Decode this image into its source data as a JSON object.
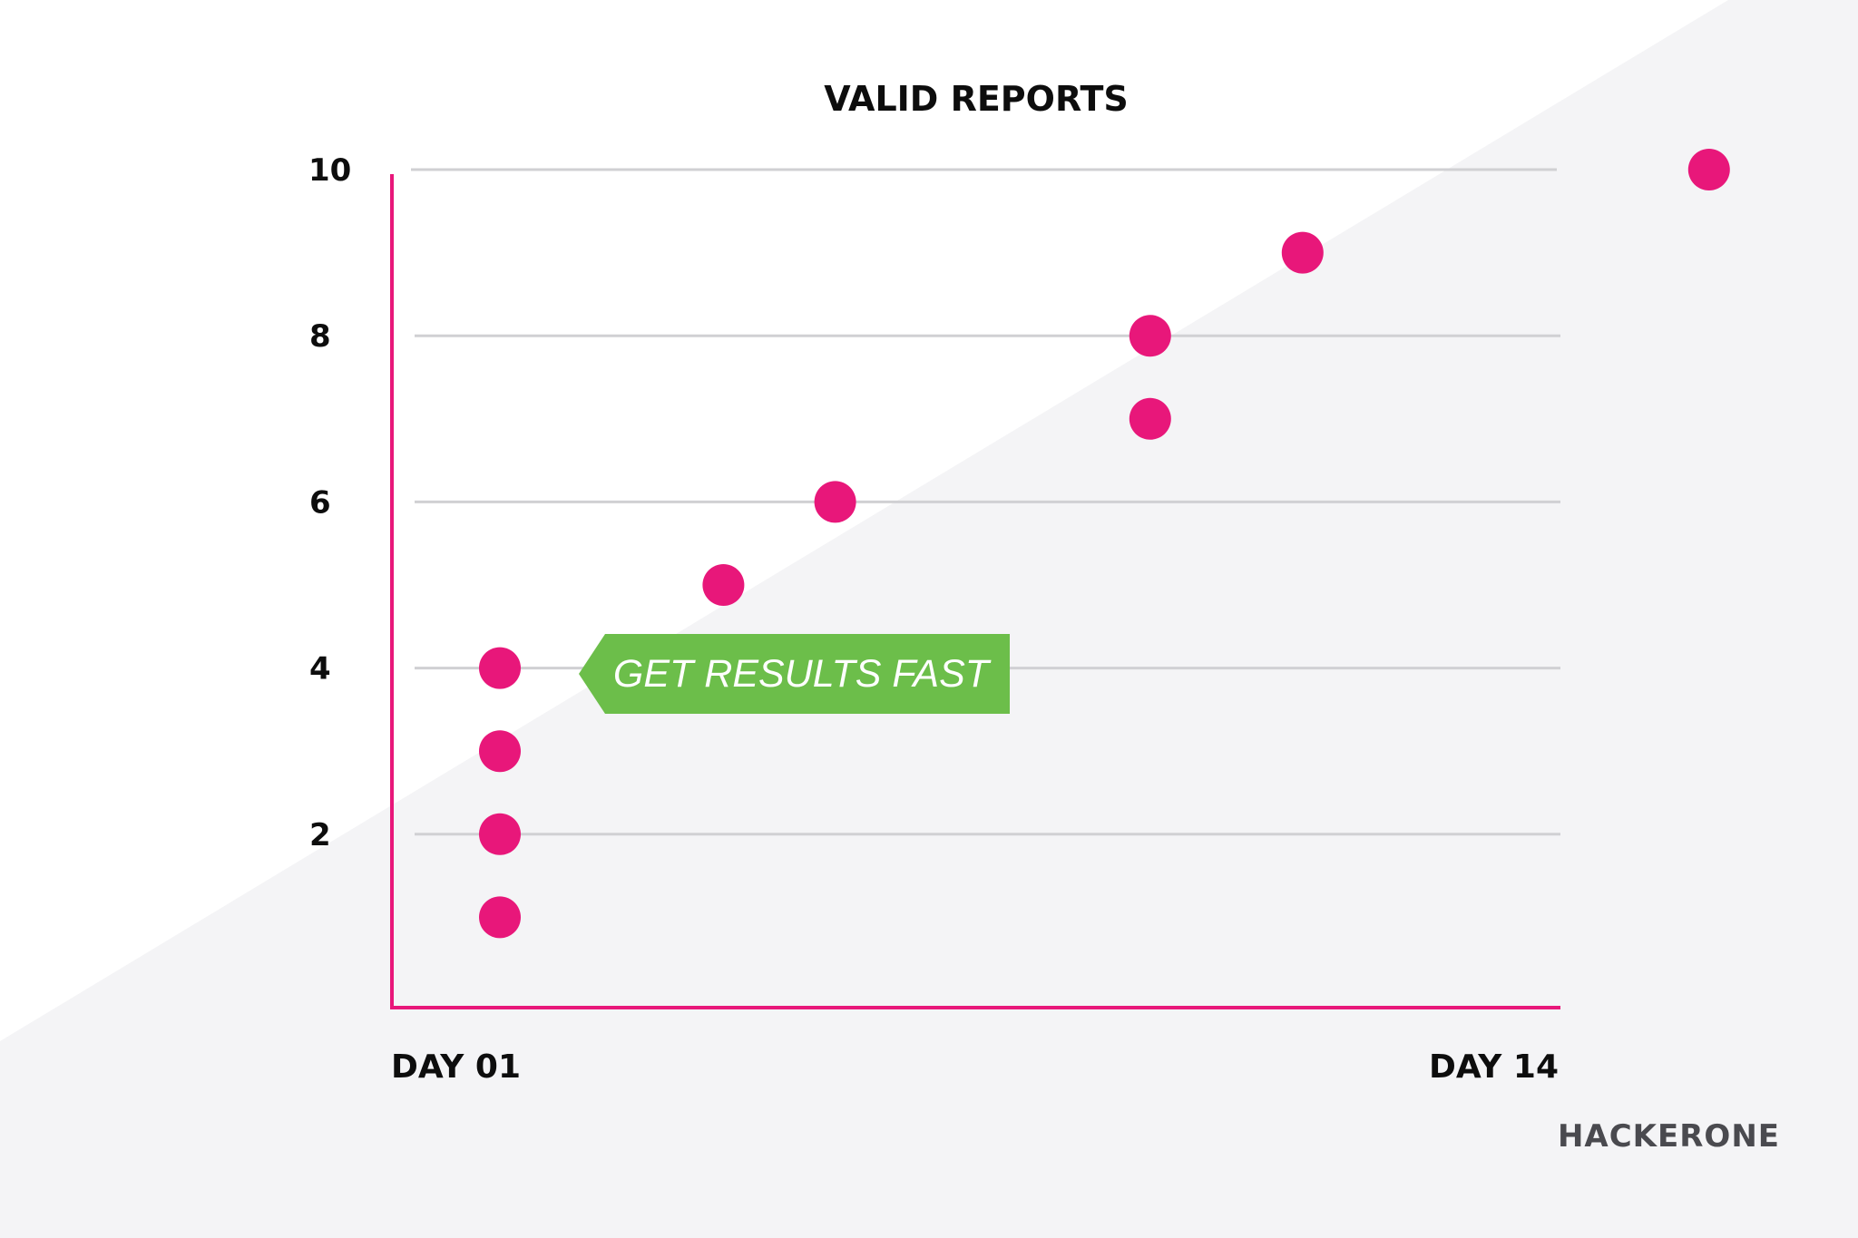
{
  "chart_data": {
    "type": "scatter",
    "title": "VALID REPORTS",
    "ylim": [
      0,
      10
    ],
    "y_ticks": [
      "2",
      "4",
      "6",
      "8",
      "10"
    ],
    "x_ticks": [
      "DAY 01",
      "DAY 14"
    ],
    "grid": true,
    "points": [
      {
        "x": 1,
        "y": 1
      },
      {
        "x": 1,
        "y": 2
      },
      {
        "x": 1,
        "y": 3
      },
      {
        "x": 1,
        "y": 4
      },
      {
        "x": 3.2,
        "y": 5
      },
      {
        "x": 4.3,
        "y": 6
      },
      {
        "x": 7.4,
        "y": 7
      },
      {
        "x": 7.4,
        "y": 8
      },
      {
        "x": 8.9,
        "y": 9
      },
      {
        "x": 12.9,
        "y": 10
      }
    ],
    "annotation": "GET RESULTS FAST",
    "colors": {
      "points": "#e8177a",
      "axis": "#e8177a",
      "grid": "#d0d0d3",
      "callout": "#6cbe4a",
      "background_shade": "#f4f4f6"
    }
  },
  "brand": {
    "name": "HACKERONE",
    "color": "#4a4a4f"
  }
}
